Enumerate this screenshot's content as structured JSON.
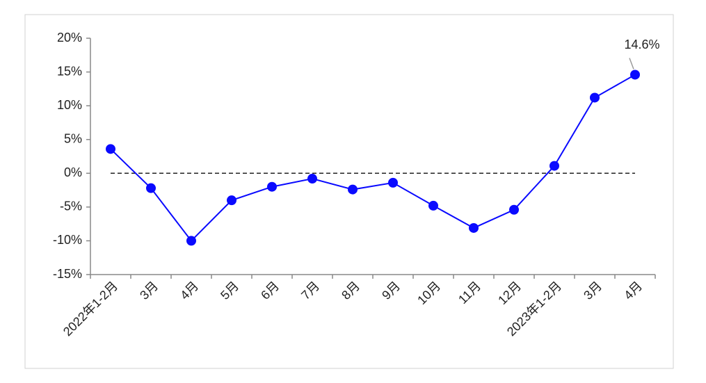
{
  "chart_data": {
    "type": "line",
    "categories": [
      "2022年1-2月",
      "3月",
      "4月",
      "5月",
      "6月",
      "7月",
      "8月",
      "9月",
      "10月",
      "11月",
      "12月",
      "2023年1-2月",
      "3月",
      "4月"
    ],
    "values": [
      3.6,
      -2.2,
      -10,
      -4,
      -2,
      -0.8,
      -2.4,
      -1.4,
      -4.8,
      -8.1,
      -5.4,
      1.1,
      11.2,
      14.6
    ],
    "value_labels": [
      null,
      null,
      null,
      null,
      null,
      null,
      null,
      null,
      null,
      null,
      null,
      null,
      null,
      "14.6%"
    ],
    "color": "#0a0aff",
    "ylim": [
      -15,
      20
    ],
    "yticks": [
      {
        "value": -15,
        "label": "-15%"
      },
      {
        "value": -10,
        "label": "-10%"
      },
      {
        "value": -5,
        "label": "-5%"
      },
      {
        "value": 0,
        "label": "0%"
      },
      {
        "value": 5,
        "label": "5%"
      },
      {
        "value": 10,
        "label": "10%"
      },
      {
        "value": 15,
        "label": "15%"
      },
      {
        "value": 20,
        "label": "20%"
      }
    ]
  }
}
